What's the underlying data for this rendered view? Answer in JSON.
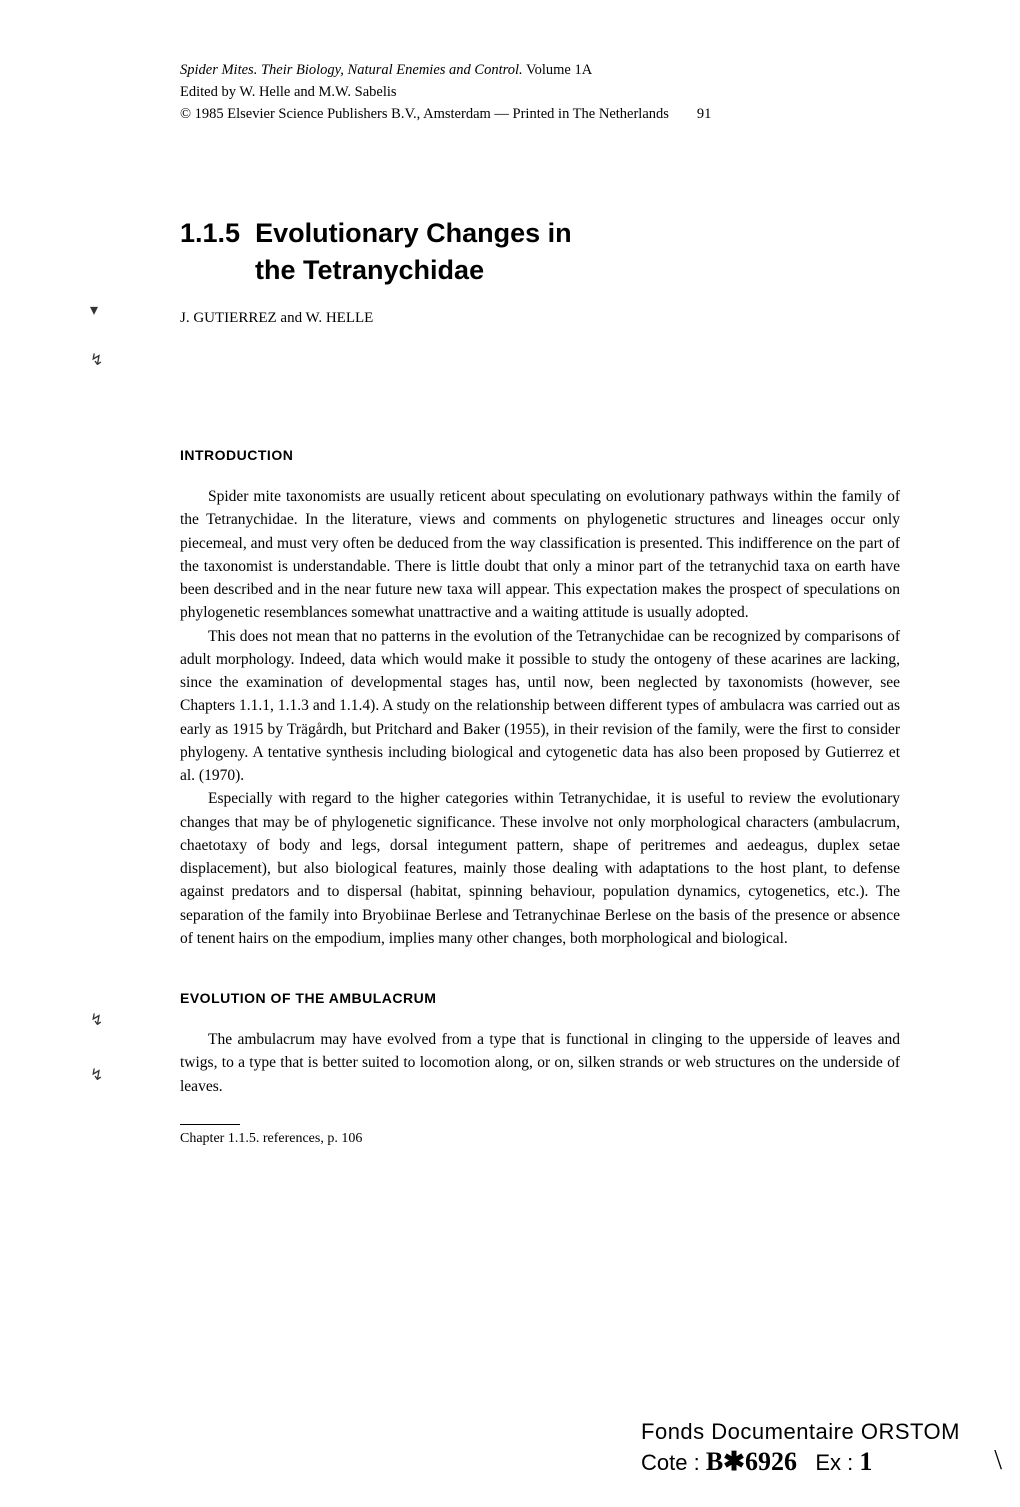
{
  "header": {
    "book_title": "Spider Mites. Their Biology, Natural Enemies and Control.",
    "volume": " Volume 1A",
    "edited_by": "Edited by W. Helle and M.W. Sabelis",
    "copyright": "© 1985 Elsevier Science Publishers B.V., Amsterdam — Printed in The Netherlands",
    "page_number": "91"
  },
  "chapter": {
    "number": "1.1.5",
    "title_line1": "Evolutionary Changes in",
    "title_line2": "the Tetranychidae"
  },
  "authors": "J. GUTIERREZ and W. HELLE",
  "sections": {
    "intro": {
      "heading": "INTRODUCTION",
      "p1": "Spider mite taxonomists are usually reticent about speculating on evolutionary pathways within the family of the Tetranychidae. In the literature, views and comments on phylogenetic structures and lineages occur only piecemeal, and must very often be deduced from the way classification is presented. This indifference on the part of the taxonomist is understandable. There is little doubt that only a minor part of the tetranychid taxa on earth have been described and in the near future new taxa will appear. This expectation makes the prospect of speculations on phylogenetic resemblances somewhat unattractive and a waiting attitude is usually adopted.",
      "p2": "This does not mean that no patterns in the evolution of the Tetranychidae can be recognized by comparisons of adult morphology. Indeed, data which would make it possible to study the ontogeny of these acarines are lacking, since the examination of developmental stages has, until now, been neglected by taxonomists (however, see Chapters 1.1.1, 1.1.3 and 1.1.4). A study on the relationship between different types of ambulacra was carried out as early as 1915 by Trägårdh, but Pritchard and Baker (1955), in their revision of the family, were the first to consider phylogeny. A tentative synthesis including biological and cytogenetic data has also been proposed by Gutierrez et al. (1970).",
      "p3": "Especially with regard to the higher categories within Tetranychidae, it is useful to review the evolutionary changes that may be of phylogenetic significance. These involve not only morphological characters (ambulacrum, chaetotaxy of body and legs, dorsal integument pattern, shape of peritremes and aedeagus, duplex setae displacement), but also biological features, mainly those dealing with adaptations to the host plant, to defense against predators and to dispersal (habitat, spinning behaviour, population dynamics, cytogenetics, etc.). The separation of the family into Bryobiinae Berlese and Tetranychinae Berlese on the basis of the presence or absence of tenent hairs on the empodium, implies many other changes, both morphological and biological."
    },
    "evolution": {
      "heading": "EVOLUTION OF THE AMBULACRUM",
      "p1": "The ambulacrum may have evolved from a type that is functional in clinging to the upperside of leaves and twigs, to a type that is better suited to locomotion along, or on, silken strands or web structures on the underside of leaves."
    }
  },
  "footnote": "Chapter 1.1.5. references, p. 106",
  "stamp": {
    "line1": "Fonds Documentaire ORSTOM",
    "cote_label": "Cote :",
    "cote_value": "B✱6926",
    "ex_label": "Ex :",
    "ex_value": "1"
  },
  "margin_marks": {
    "m1": "▾",
    "m2": "↯",
    "m3": "↯",
    "m4": "↯"
  }
}
